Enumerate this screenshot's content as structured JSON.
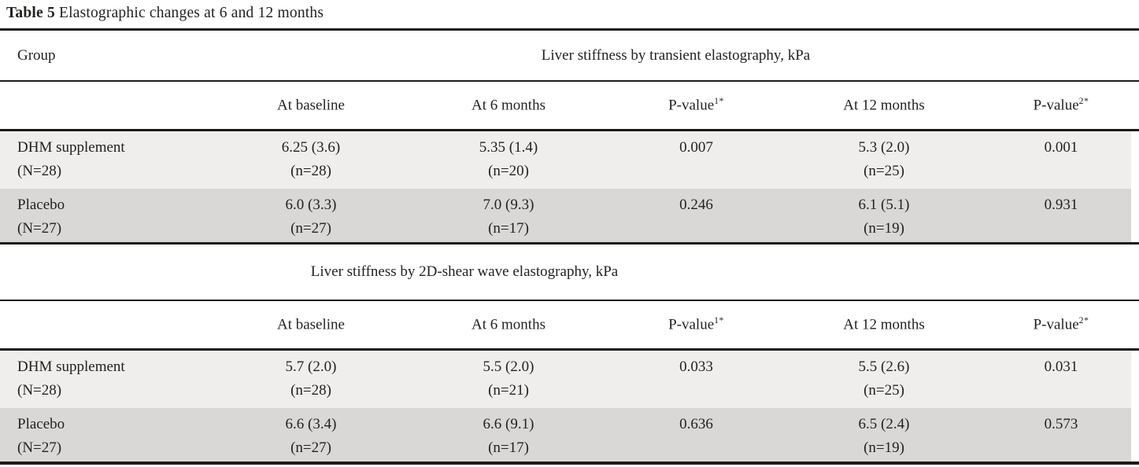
{
  "title": {
    "prefix": "Table 5",
    "text": " Elastographic changes at 6 and 12 months"
  },
  "group_column_header": "Group",
  "colors": {
    "row_light": "#efeeec",
    "row_dark": "#d9d8d6",
    "rule": "#1b1b19",
    "text": "#222220"
  },
  "sections": [
    {
      "header": "Liver stiffness by transient elastography, kPa",
      "columns": [
        {
          "label": "At baseline"
        },
        {
          "label": "At 6 months"
        },
        {
          "label": "P-value",
          "sup": "1*"
        },
        {
          "label": "At 12 months"
        },
        {
          "label": "P-value",
          "sup": "2*"
        }
      ],
      "rows": [
        {
          "group": [
            "DHM supplement",
            "(N=28)"
          ],
          "cells": [
            {
              "v": "6.25 (3.6)",
              "n": "(n=28)"
            },
            {
              "v": "5.35 (1.4)",
              "n": "(n=20)"
            },
            {
              "v": "0.007"
            },
            {
              "v": "5.3 (2.0)",
              "n": "(n=25)"
            },
            {
              "v": "0.001"
            }
          ]
        },
        {
          "group": [
            "Placebo",
            "(N=27)"
          ],
          "cells": [
            {
              "v": "6.0 (3.3)",
              "n": "(n=27)"
            },
            {
              "v": "7.0 (9.3)",
              "n": "(n=17)"
            },
            {
              "v": "0.246"
            },
            {
              "v": "6.1 (5.1)",
              "n": "(n=19)"
            },
            {
              "v": "0.931"
            }
          ]
        }
      ]
    },
    {
      "header": "Liver stiffness by 2D-shear wave elastography, kPa",
      "columns": [
        {
          "label": "At baseline"
        },
        {
          "label": "At 6 months"
        },
        {
          "label": "P-value",
          "sup": "1*"
        },
        {
          "label": "At 12 months"
        },
        {
          "label": "P-value",
          "sup": "2*"
        }
      ],
      "rows": [
        {
          "group": [
            "DHM supplement",
            "(N=28)"
          ],
          "cells": [
            {
              "v": "5.7 (2.0)",
              "n": "(n=28)"
            },
            {
              "v": "5.5 (2.0)",
              "n": "(n=21)"
            },
            {
              "v": "0.033"
            },
            {
              "v": "5.5 (2.6)",
              "n": "(n=25)"
            },
            {
              "v": "0.031"
            }
          ]
        },
        {
          "group": [
            "Placebo",
            "(N=27)"
          ],
          "cells": [
            {
              "v": "6.6 (3.4)",
              "n": "(n=27)"
            },
            {
              "v": "6.6 (9.1)",
              "n": "(n=17)"
            },
            {
              "v": "0.636"
            },
            {
              "v": "6.5 (2.4)",
              "n": "(n=19)"
            },
            {
              "v": "0.573"
            }
          ]
        }
      ]
    }
  ]
}
